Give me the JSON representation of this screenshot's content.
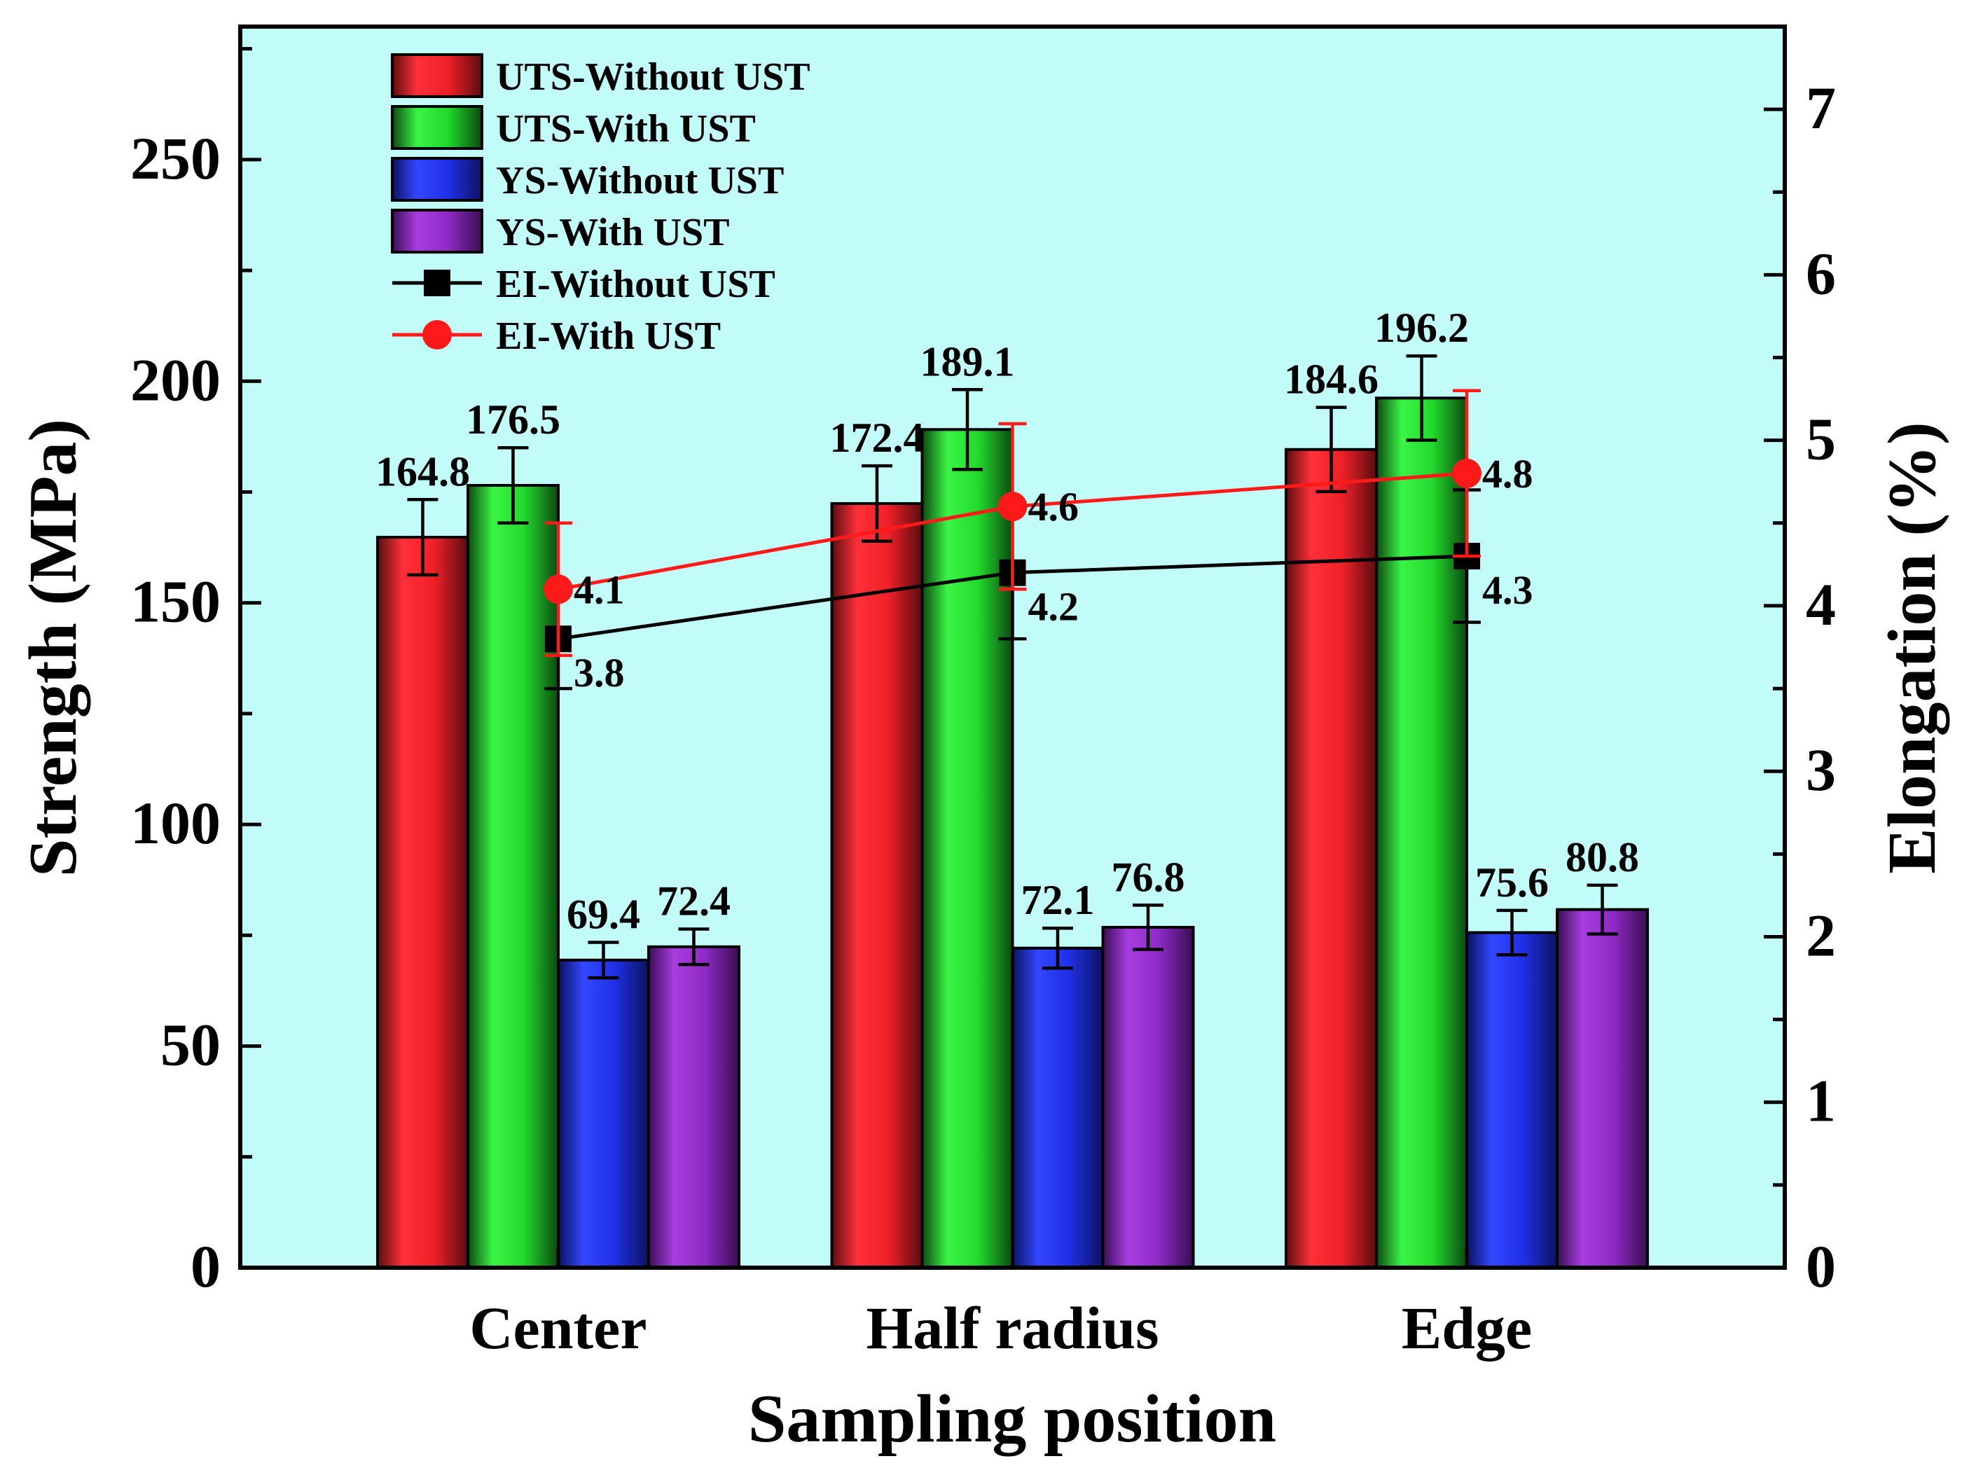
{
  "chart_data": {
    "type": "bar",
    "title": "",
    "xlabel": "Sampling position",
    "ylabel": "Strength (MPa)",
    "y2label": "Elongation (%)",
    "ylim": [
      0,
      280
    ],
    "y2lim": [
      0,
      7.5
    ],
    "yticks": [
      "0",
      "50",
      "100",
      "150",
      "200",
      "250"
    ],
    "y2ticks": [
      "0",
      "1",
      "2",
      "3",
      "4",
      "5",
      "6",
      "7"
    ],
    "categories": [
      "Center",
      "Half radius",
      "Edge"
    ],
    "legend_position": "top-left",
    "series": [
      {
        "name": "UTS-Without UST",
        "kind": "bar",
        "color": "#e8232a",
        "values": [
          164.8,
          172.4,
          184.6
        ],
        "labels": [
          "164.8",
          "172.4",
          "184.6"
        ],
        "errors": [
          8.5,
          8.5,
          9.5
        ]
      },
      {
        "name": "UTS-With UST",
        "kind": "bar",
        "color": "#1fd12a",
        "values": [
          176.5,
          189.1,
          196.2
        ],
        "labels": [
          "176.5",
          "189.1",
          "196.2"
        ],
        "errors": [
          8.5,
          9.0,
          9.5
        ]
      },
      {
        "name": "YS-Without UST",
        "kind": "bar",
        "color": "#2233e0",
        "values": [
          69.4,
          72.1,
          75.6
        ],
        "labels": [
          "69.4",
          "72.1",
          "75.6"
        ],
        "errors": [
          4.0,
          4.5,
          5.0
        ]
      },
      {
        "name": "YS-With UST",
        "kind": "bar",
        "color": "#8e2bc4",
        "values": [
          72.4,
          76.8,
          80.8
        ],
        "labels": [
          "72.4",
          "76.8",
          "80.8"
        ],
        "errors": [
          4.0,
          5.0,
          5.5
        ]
      },
      {
        "name": "EI-Without UST",
        "kind": "line",
        "axis": "right",
        "marker": "square",
        "color": "#000000",
        "values": [
          3.8,
          4.2,
          4.3
        ],
        "labels": [
          "3.8",
          "4.2",
          "4.3"
        ],
        "errors": [
          0.3,
          0.4,
          0.4
        ]
      },
      {
        "name": "EI-With UST",
        "kind": "line",
        "axis": "right",
        "marker": "circle",
        "color": "#ff1a1a",
        "values": [
          4.1,
          4.6,
          4.8
        ],
        "labels": [
          "4.1",
          "4.6",
          "4.8"
        ],
        "errors": [
          0.4,
          0.5,
          0.5
        ]
      }
    ]
  },
  "colors": {
    "plot_background": "#c2fcf9"
  }
}
